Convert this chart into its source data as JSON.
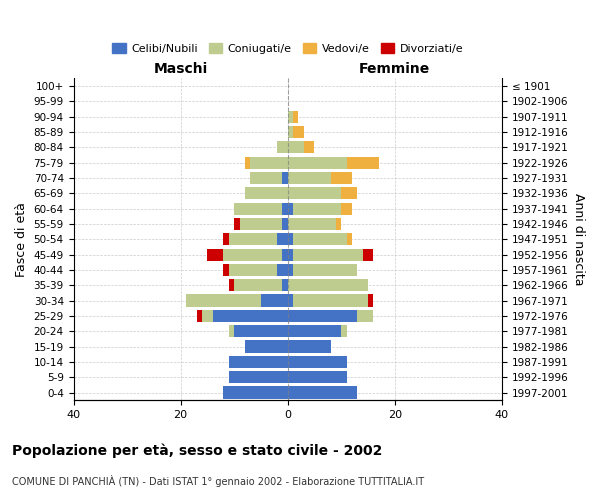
{
  "age_groups": [
    "100+",
    "95-99",
    "90-94",
    "85-89",
    "80-84",
    "75-79",
    "70-74",
    "65-69",
    "60-64",
    "55-59",
    "50-54",
    "45-49",
    "40-44",
    "35-39",
    "30-34",
    "25-29",
    "20-24",
    "15-19",
    "10-14",
    "5-9",
    "0-4"
  ],
  "birth_years": [
    "≤ 1901",
    "1902-1906",
    "1907-1911",
    "1912-1916",
    "1917-1921",
    "1922-1926",
    "1927-1931",
    "1932-1936",
    "1937-1941",
    "1942-1946",
    "1947-1951",
    "1952-1956",
    "1957-1961",
    "1962-1966",
    "1967-1971",
    "1972-1976",
    "1977-1981",
    "1982-1986",
    "1987-1991",
    "1992-1996",
    "1997-2001"
  ],
  "maschi": {
    "celibi": [
      0,
      0,
      0,
      0,
      0,
      0,
      1,
      0,
      1,
      1,
      2,
      1,
      2,
      1,
      5,
      14,
      10,
      8,
      11,
      11,
      12
    ],
    "coniugati": [
      0,
      0,
      0,
      0,
      2,
      7,
      6,
      8,
      9,
      8,
      9,
      11,
      9,
      9,
      14,
      2,
      1,
      0,
      0,
      0,
      0
    ],
    "vedovi": [
      0,
      0,
      0,
      0,
      0,
      1,
      0,
      0,
      0,
      0,
      0,
      0,
      0,
      0,
      0,
      0,
      0,
      0,
      0,
      0,
      0
    ],
    "divorziati": [
      0,
      0,
      0,
      0,
      0,
      0,
      0,
      0,
      0,
      1,
      1,
      3,
      1,
      1,
      0,
      1,
      0,
      0,
      0,
      0,
      0
    ]
  },
  "femmine": {
    "nubili": [
      0,
      0,
      0,
      0,
      0,
      0,
      0,
      0,
      1,
      0,
      1,
      1,
      1,
      0,
      1,
      13,
      10,
      8,
      11,
      11,
      13
    ],
    "coniugate": [
      0,
      0,
      1,
      1,
      3,
      11,
      8,
      10,
      9,
      9,
      10,
      13,
      12,
      15,
      14,
      3,
      1,
      0,
      0,
      0,
      0
    ],
    "vedove": [
      0,
      0,
      1,
      2,
      2,
      6,
      4,
      3,
      2,
      1,
      1,
      0,
      0,
      0,
      0,
      0,
      0,
      0,
      0,
      0,
      0
    ],
    "divorziate": [
      0,
      0,
      0,
      0,
      0,
      0,
      0,
      0,
      0,
      0,
      0,
      2,
      0,
      0,
      1,
      0,
      0,
      0,
      0,
      0,
      0
    ]
  },
  "colors": {
    "celibi": "#4472C4",
    "coniugati": "#BECC8F",
    "vedovi": "#F0B040",
    "divorziati": "#CC0000"
  },
  "xlim": 40,
  "title": "Popolazione per età, sesso e stato civile - 2002",
  "subtitle": "COMUNE DI PANCHIÀ (TN) - Dati ISTAT 1° gennaio 2002 - Elaborazione TUTTITALIA.IT",
  "xlabel_left": "Maschi",
  "xlabel_right": "Femmine",
  "ylabel_left": "Fasce di età",
  "ylabel_right": "Anni di nascita"
}
